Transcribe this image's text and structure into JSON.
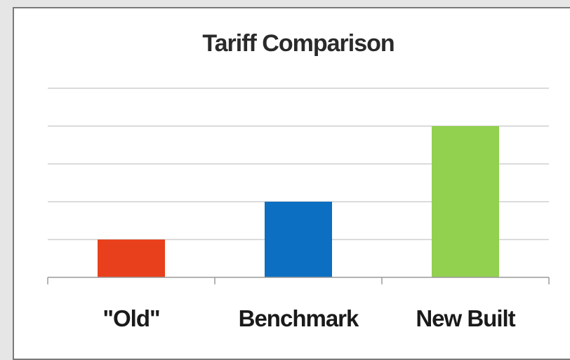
{
  "chart_data": {
    "type": "bar",
    "title": "Tariff Comparison",
    "categories": [
      "\"Old\"",
      "Benchmark",
      "New Built"
    ],
    "values": [
      1,
      2,
      4
    ],
    "colors": [
      "#e8401c",
      "#0c6fc1",
      "#92d050"
    ],
    "xlabel": "",
    "ylabel": "",
    "ylim": [
      0,
      5
    ],
    "grid": true,
    "legend": "none"
  }
}
